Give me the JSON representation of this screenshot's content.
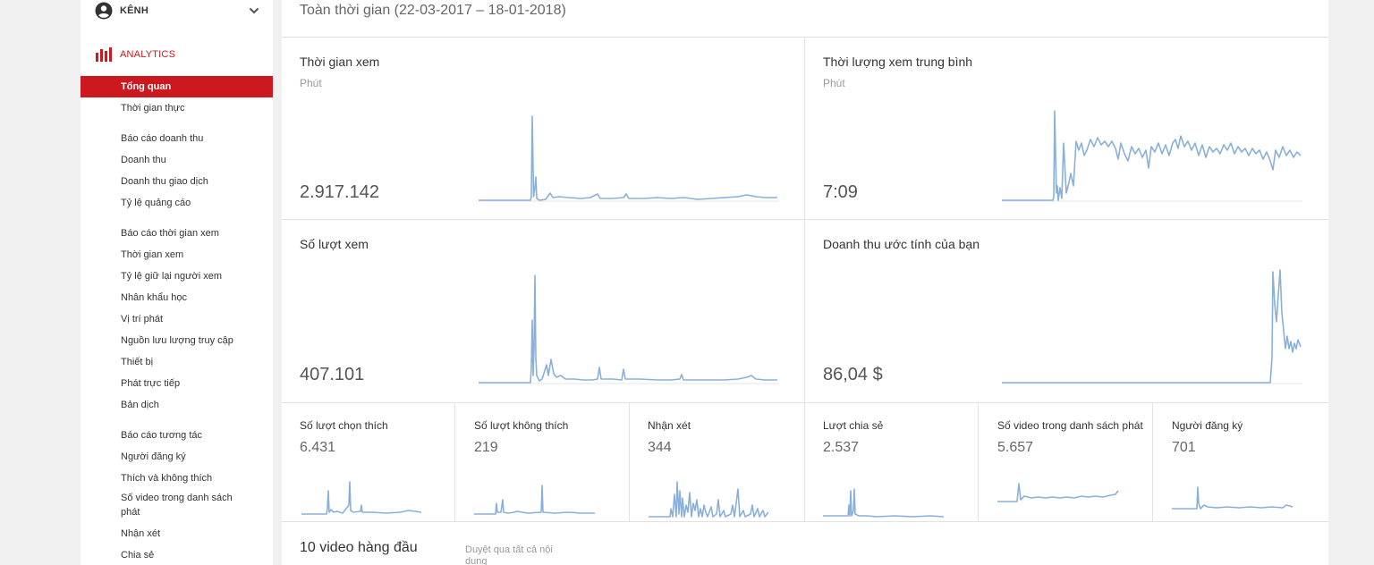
{
  "sidebar": {
    "channel_label": "KÊNH",
    "analytics_label": "ANALYTICS",
    "items": [
      {
        "label": "Tổng quan",
        "active": true
      },
      {
        "label": "Thời gian thực"
      },
      {
        "label": "Báo cáo doanh thu"
      },
      {
        "label": "Doanh thu"
      },
      {
        "label": "Doanh thu giao dịch"
      },
      {
        "label": "Tỷ lệ quảng cáo"
      },
      {
        "label": "Báo cáo thời gian xem"
      },
      {
        "label": "Thời gian xem"
      },
      {
        "label": "Tỷ lệ giữ lại người xem"
      },
      {
        "label": "Nhân khẩu học"
      },
      {
        "label": "Vị trí phát"
      },
      {
        "label": "Nguồn lưu lượng truy cập"
      },
      {
        "label": "Thiết bị"
      },
      {
        "label": "Phát trực tiếp"
      },
      {
        "label": "Bản dịch"
      },
      {
        "label": "Báo cáo tương tác"
      },
      {
        "label": "Người đăng ký"
      },
      {
        "label": "Thích và không thích"
      },
      {
        "label": "Số video trong danh sách phát"
      },
      {
        "label": "Nhận xét"
      },
      {
        "label": "Chia sẻ"
      }
    ],
    "icons": {
      "channel": "account-circle-icon",
      "analytics": "bar-chart-icon",
      "expand": "chevron-down-icon"
    },
    "active_color": "#cc181e"
  },
  "main": {
    "date_range": "Toàn thời gian (22-03-2017 – 18-01-2018)",
    "big_cards": [
      {
        "title": "Thời gian xem",
        "unit": "Phút",
        "value": "2.917.142"
      },
      {
        "title": "Thời lượng xem trung bình",
        "unit": "Phút",
        "value": "7:09"
      },
      {
        "title": "Số lượt xem",
        "unit": "",
        "value": "407.101"
      },
      {
        "title": "Doanh thu ước tính của bạn",
        "unit": "",
        "value": "86,04 $"
      }
    ],
    "small_cards": [
      {
        "title": "Số lượt chọn thích",
        "value": "6.431"
      },
      {
        "title": "Số lượt không thích",
        "value": "219"
      },
      {
        "title": "Nhận xét",
        "value": "344"
      },
      {
        "title": "Lượt chia sẻ",
        "value": "2.537"
      },
      {
        "title": "Số video trong danh sách phát",
        "value": "5.657"
      },
      {
        "title": "Người đăng ký",
        "value": "701"
      }
    ],
    "top_videos_title": "10 video hàng đầu",
    "browse_all_link": "Duyệt qua tất cả nội dung",
    "sparkline_color": "#8ab0da"
  }
}
